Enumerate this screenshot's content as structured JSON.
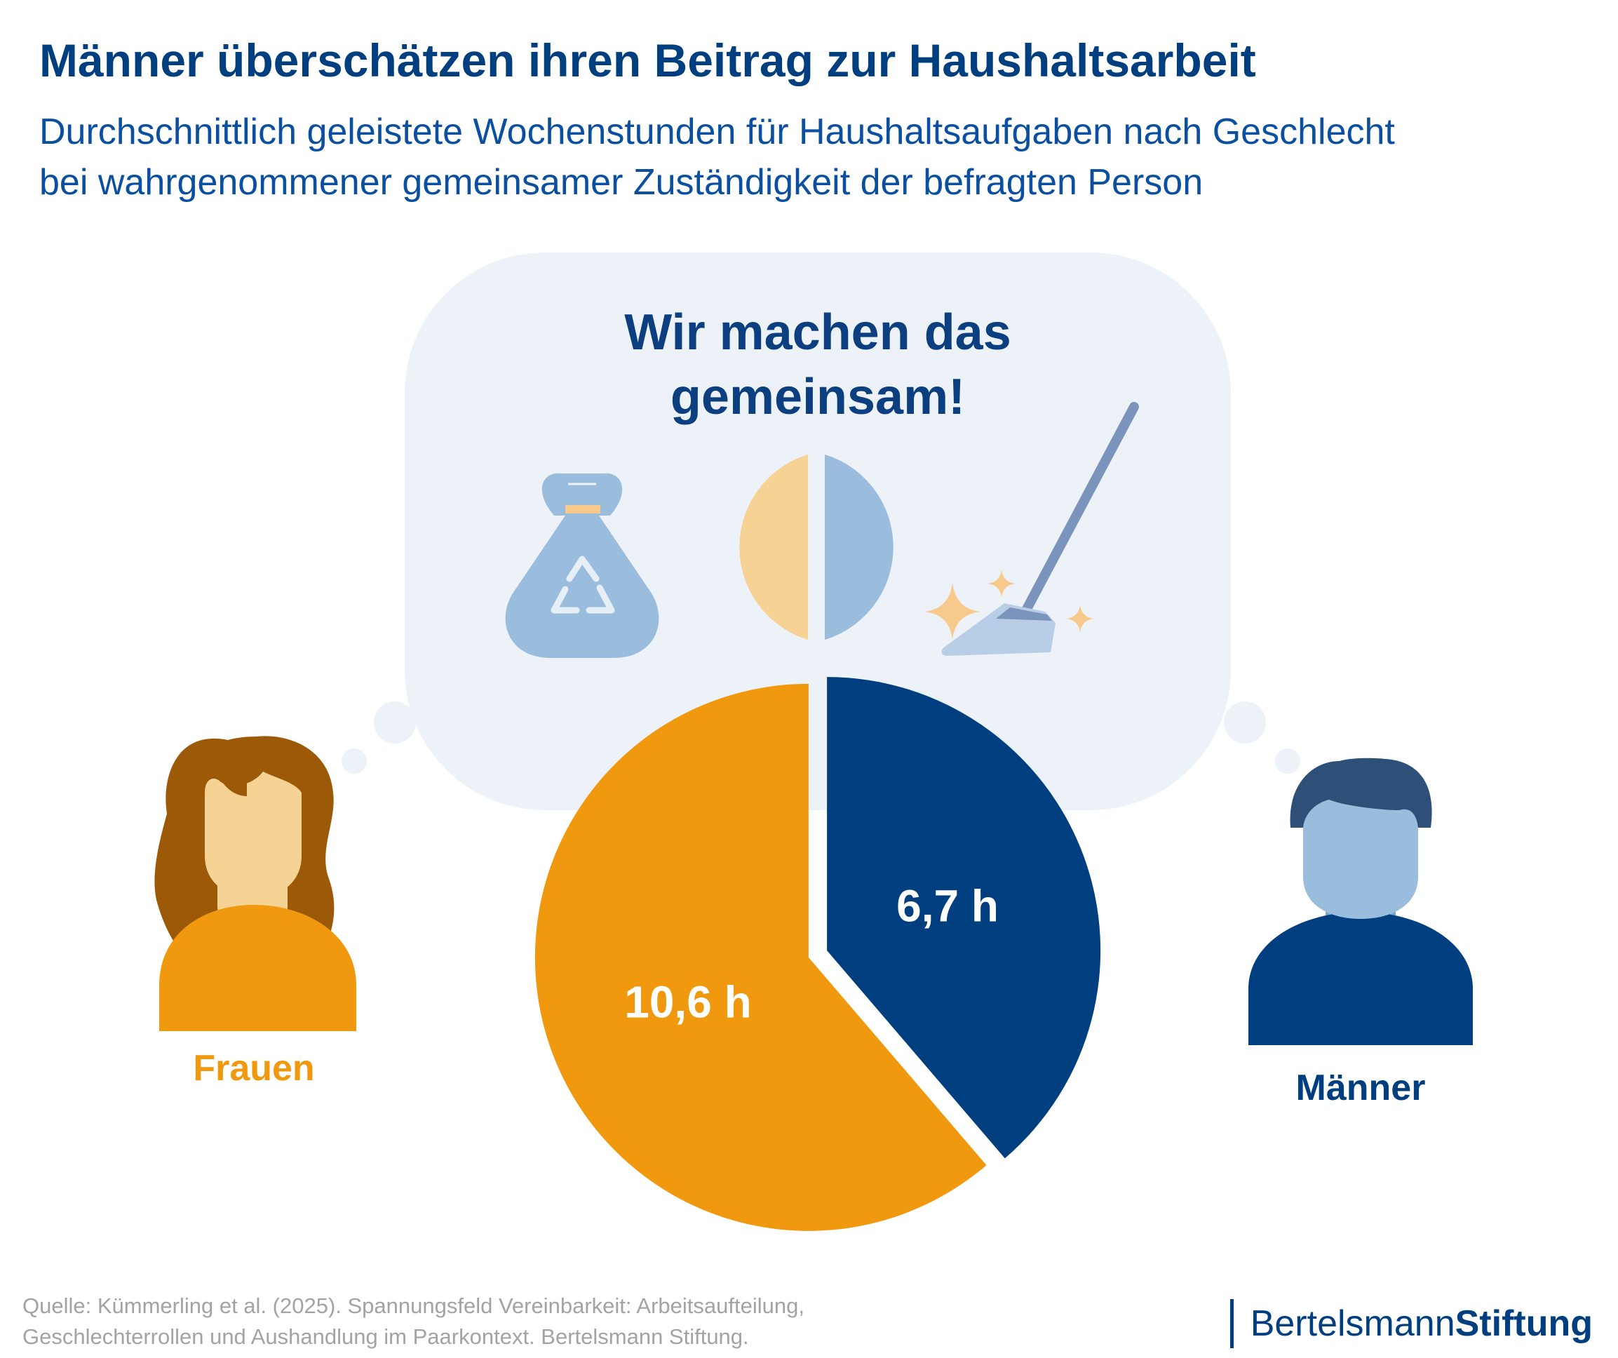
{
  "header": {
    "title": "Männer überschätzen ihren Beitrag zur Haushaltsarbeit",
    "subtitle_line1": "Durchschnittlich geleistete Wochenstunden für Haushaltsaufgaben nach Geschlecht",
    "subtitle_line2": "bei wahrgenommener gemeinsamer Zuständigkeit der befragten Person"
  },
  "bubble": {
    "line1": "Wir machen das",
    "line2": "gemeinsam!",
    "icons": [
      "recycling-bag-icon",
      "half-half-circle-icon",
      "broom-sparkle-icon"
    ]
  },
  "chart_data": {
    "type": "pie",
    "unit": "h",
    "slices": [
      {
        "name": "Männer",
        "value": 6.7,
        "label": "6,7 h",
        "color": "#003f7f"
      },
      {
        "name": "Frauen",
        "value": 10.6,
        "label": "10,6 h",
        "color": "#f0990f"
      }
    ],
    "legend": {
      "frauen_label": "Frauen",
      "maenner_label": "Männer"
    }
  },
  "colors": {
    "frauen": "#f0990f",
    "maenner": "#003f7f",
    "bubble_bg": "#edf2f8",
    "title": "#003f7f"
  },
  "footer": {
    "source_line1": "Quelle: Kümmerling et al. (2025). Spannungsfeld Vereinbarkeit: Arbeitsaufteilung,",
    "source_line2": "Geschlechterrollen und Aushandlung im Paarkontext. Bertelsmann Stiftung.",
    "logo_regular": "Bertelsmann",
    "logo_bold": "Stiftung"
  }
}
